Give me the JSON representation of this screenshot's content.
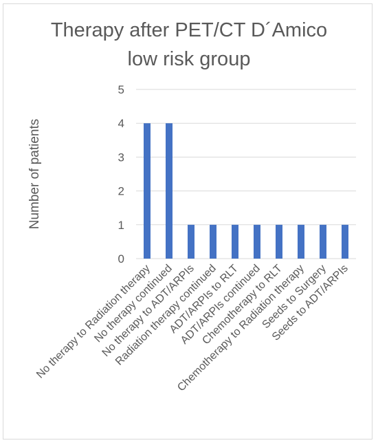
{
  "chart_data": {
    "type": "bar",
    "title_line1": "Therapy after PET/CT D´Amico",
    "title_line2": "low risk group",
    "xlabel": "",
    "ylabel": "Number of patients",
    "ylim": [
      0,
      5
    ],
    "yticks": [
      "0",
      "1",
      "2",
      "3",
      "4",
      "5"
    ],
    "grid": true,
    "legend": "none",
    "bar_color": "#4472c4",
    "categories": [
      "No therapy to Radiation therapy",
      "No therapy continued",
      "No therapy to ADT/ARPIs",
      "Radiation therapy continued",
      "ADT/ARPIs to RLT",
      "ADT/ARPIs continued",
      "Chemotherapy to RLT",
      "Chemotherapy to Radiation therapy",
      "Seeds to Surgery",
      "Seeds to ADT/ARPIs"
    ],
    "values": [
      4,
      4,
      1,
      1,
      1,
      1,
      1,
      1,
      1,
      1
    ]
  }
}
